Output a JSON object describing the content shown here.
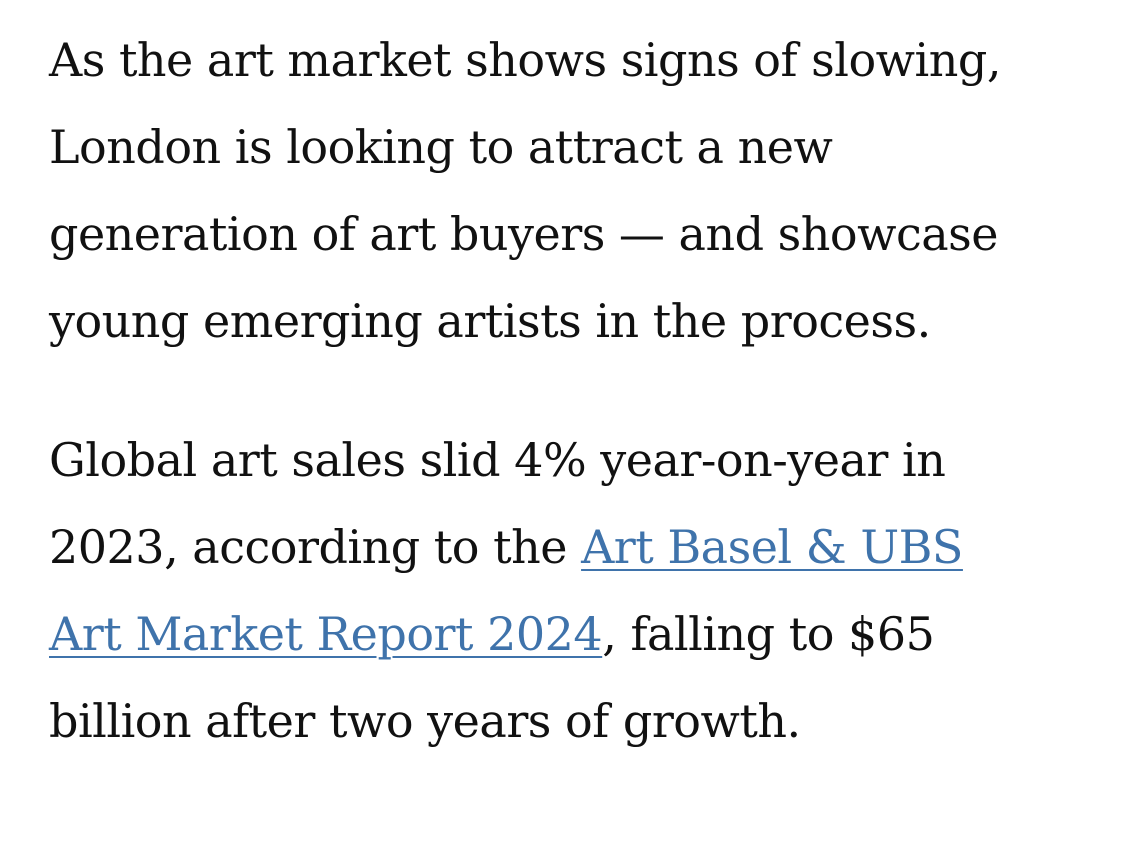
{
  "article": {
    "paragraph1": {
      "lines": [
        "As the art market shows signs of slowing,",
        "London is looking to attract a new",
        "generation of art buyers — and showcase",
        "young emerging artists in the process."
      ]
    },
    "paragraph2": {
      "line1": "Global art sales slid 4% year-on-year in",
      "line2_prefix": "2023, according to the ",
      "link_part1": "Art Basel & UBS",
      "link_part2": "Art Market Report 2024",
      "line3_suffix": ", falling to $65",
      "line4": "billion after two years of growth."
    },
    "link_color": "#3f73ab"
  }
}
